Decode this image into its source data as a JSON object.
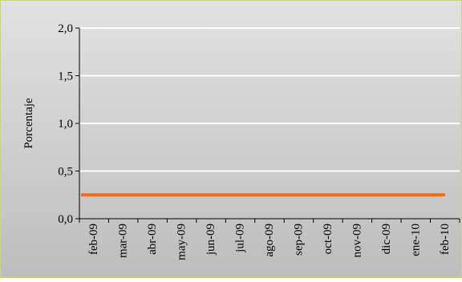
{
  "chart_data": {
    "type": "line",
    "title": "",
    "xlabel": "",
    "ylabel": "Porcentaje",
    "categories": [
      "feb-09",
      "mar-09",
      "abr-09",
      "may-09",
      "jun-09",
      "jul-09",
      "ago-09",
      "sep-09",
      "oct-09",
      "nov-09",
      "dic-09",
      "ene-10",
      "feb-10"
    ],
    "y_ticks": [
      "0,0",
      "0,5",
      "1,0",
      "1,5",
      "2,0"
    ],
    "ylim": [
      0,
      2
    ],
    "grid": true,
    "legend": "none",
    "series": [
      {
        "values": [
          0.25,
          0.25,
          0.25,
          0.25,
          0.25,
          0.25,
          0.25,
          0.25,
          0.25,
          0.25,
          0.25,
          0.25,
          0.25
        ],
        "color": "#ff6a10"
      }
    ],
    "colors": {
      "background_top": "#e2e2e2",
      "background_bottom": "#bdbdbd",
      "frame_border": "#c8d878",
      "gridline": "#ffffff"
    }
  }
}
